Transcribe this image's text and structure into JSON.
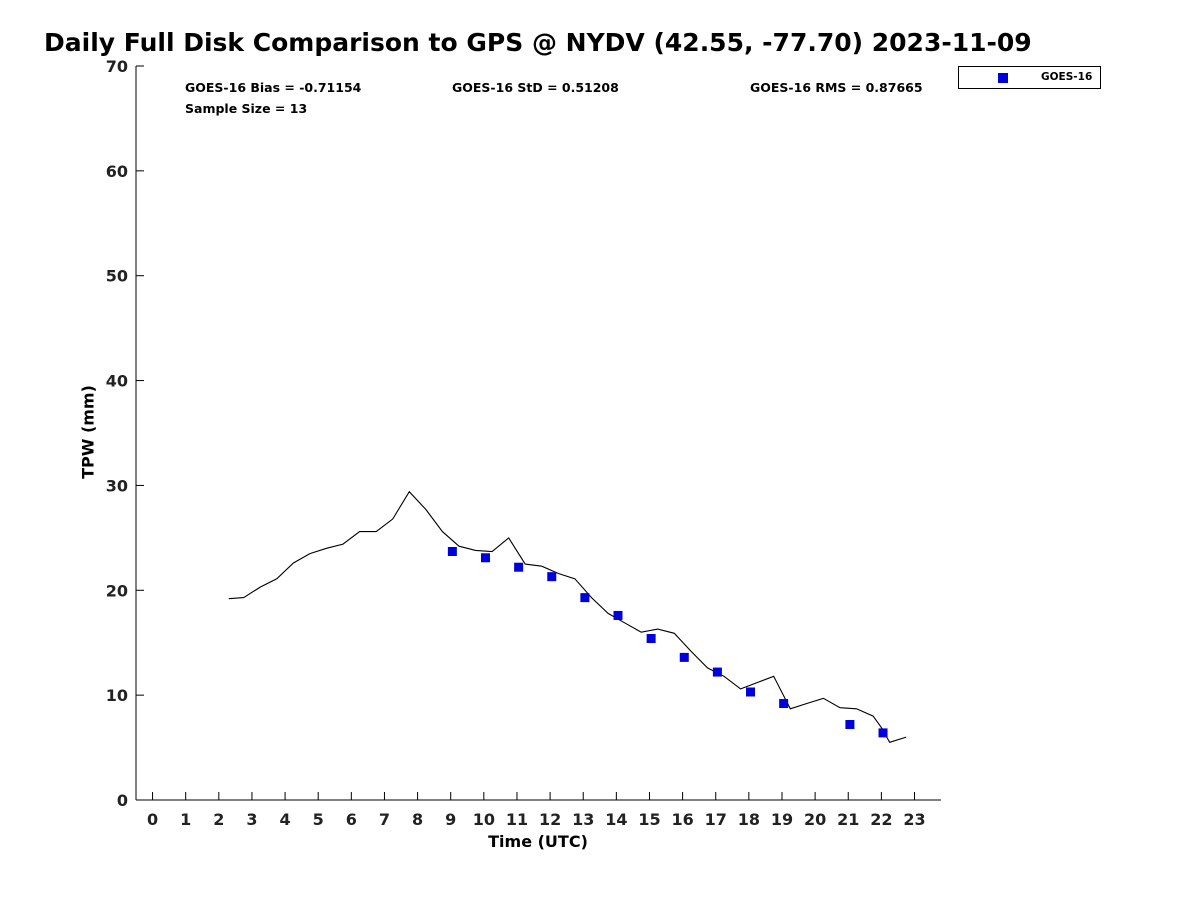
{
  "title": "Daily Full Disk Comparison to GPS @ NYDV (42.55, -77.70) 2023-11-09",
  "stats": {
    "bias": "GOES-16 Bias = -0.71154",
    "std": "GOES-16 StD = 0.51208",
    "rms": "GOES-16 RMS = 0.87665",
    "sample": "Sample Size = 13"
  },
  "legend": {
    "label": "GOES-16",
    "color": "#0000dd"
  },
  "chart_data": {
    "type": "scatter",
    "xlabel": "Time (UTC)",
    "ylabel": "TPW (mm)",
    "xlim": [
      -0.5,
      23.8
    ],
    "ylim": [
      0,
      70
    ],
    "xticks": [
      0,
      1,
      2,
      3,
      4,
      5,
      6,
      7,
      8,
      9,
      10,
      11,
      12,
      13,
      14,
      15,
      16,
      17,
      18,
      19,
      20,
      21,
      22,
      23
    ],
    "xtick_labels": [
      "0",
      "1",
      "2",
      "3",
      "4",
      "5",
      "6",
      "7",
      "8",
      "9",
      "10",
      "11",
      "12",
      "13",
      "14",
      "15",
      "16",
      "17",
      "18",
      "19",
      "20",
      "21",
      "22",
      "23"
    ],
    "yticks": [
      0,
      10,
      20,
      30,
      40,
      50,
      60,
      70
    ],
    "ytick_labels": [
      "0",
      "10",
      "20",
      "30",
      "40",
      "50",
      "60",
      "70"
    ],
    "grid": false,
    "legend_position": "top-right",
    "series": [
      {
        "name": "GOES-16",
        "style": "markers",
        "color": "#0000dd",
        "x": [
          9.05,
          10.05,
          11.05,
          12.05,
          13.05,
          14.05,
          15.05,
          16.05,
          17.05,
          18.05,
          19.05,
          21.05,
          22.05
        ],
        "y": [
          23.7,
          23.1,
          22.2,
          21.3,
          19.3,
          17.6,
          15.4,
          13.6,
          12.2,
          10.3,
          9.2,
          7.2,
          6.4
        ]
      },
      {
        "style": "line",
        "color": "#000000",
        "x": [
          2.3,
          2.75,
          3.25,
          3.75,
          4.25,
          4.75,
          5.25,
          5.75,
          6.25,
          6.75,
          7.25,
          7.75,
          8.25,
          8.75,
          9.25,
          9.75,
          10.25,
          10.75,
          11.25,
          11.75,
          12.25,
          12.75,
          13.25,
          13.75,
          14.25,
          14.75,
          15.25,
          15.75,
          16.25,
          16.75,
          17.25,
          17.75,
          18.25,
          18.75,
          19.25,
          19.75,
          20.25,
          20.75,
          21.25,
          21.75,
          22.0,
          22.25,
          22.75
        ],
        "y": [
          19.2,
          19.3,
          20.3,
          21.1,
          22.6,
          23.5,
          24.0,
          24.4,
          25.6,
          25.6,
          26.8,
          29.4,
          27.7,
          25.6,
          24.2,
          23.8,
          23.7,
          25.0,
          22.5,
          22.3,
          21.6,
          21.1,
          19.3,
          17.8,
          16.9,
          16.0,
          16.3,
          15.9,
          14.2,
          12.6,
          11.8,
          10.6,
          11.2,
          11.8,
          8.7,
          9.2,
          9.7,
          8.8,
          8.7,
          8.0,
          6.9,
          5.5,
          6.0
        ]
      }
    ]
  }
}
